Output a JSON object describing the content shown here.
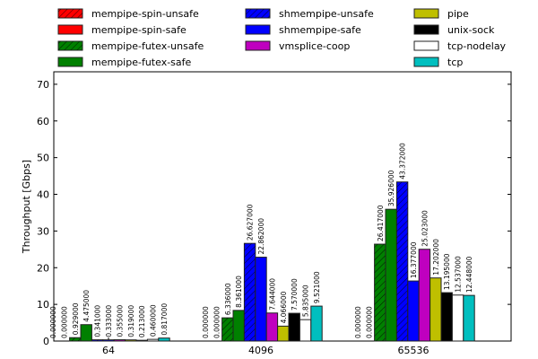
{
  "chart_data": {
    "type": "bar",
    "title": "",
    "xlabel": "",
    "ylabel": "Throughput [Gbps]",
    "ylim": [
      0,
      73.4
    ],
    "yticks": [
      0,
      10,
      20,
      30,
      40,
      50,
      60,
      70
    ],
    "categories": [
      "64",
      "4096",
      "65536"
    ],
    "legend_position": "top",
    "series": [
      {
        "name": "mempipe-spin-unsafe",
        "color": "#ff0000",
        "hatch": true,
        "values": [
          0.0,
          0.0,
          0.0
        ],
        "labels": [
          "0.000000",
          "0.000000",
          "0.000000"
        ]
      },
      {
        "name": "mempipe-spin-safe",
        "color": "#ff0000",
        "hatch": false,
        "values": [
          0.0,
          0.0,
          0.0
        ],
        "labels": [
          "0.000000",
          "0.000000",
          "0.000000"
        ]
      },
      {
        "name": "mempipe-futex-unsafe",
        "color": "#008000",
        "hatch": true,
        "values": [
          0.929,
          6.336,
          26.417
        ],
        "labels": [
          "0.929000",
          "6.336000",
          "26.417000"
        ]
      },
      {
        "name": "mempipe-futex-safe",
        "color": "#008000",
        "hatch": false,
        "values": [
          4.475,
          8.361,
          35.926
        ],
        "labels": [
          "4.475000",
          "8.361000",
          "35.926000"
        ]
      },
      {
        "name": "shmempipe-unsafe",
        "color": "#0000ff",
        "hatch": true,
        "values": [
          0.341,
          26.627,
          43.372
        ],
        "labels": [
          "0.341000",
          "26.627000",
          "43.372000"
        ]
      },
      {
        "name": "shmempipe-safe",
        "color": "#0000ff",
        "hatch": false,
        "values": [
          0.333,
          22.862,
          16.377
        ],
        "labels": [
          "0.333000",
          "22.862000",
          "16.377000"
        ]
      },
      {
        "name": "vmsplice-coop",
        "color": "#bf00bf",
        "hatch": false,
        "values": [
          0.355,
          7.644,
          25.023
        ],
        "labels": [
          "0.355000",
          "7.644000",
          "25.023000"
        ]
      },
      {
        "name": "pipe",
        "color": "#bfbf00",
        "hatch": false,
        "values": [
          0.319,
          4.066,
          17.202
        ],
        "labels": [
          "0.319000",
          "4.066000",
          "17.202000"
        ]
      },
      {
        "name": "unix-sock",
        "color": "#000000",
        "hatch": false,
        "values": [
          0.213,
          7.57,
          13.195
        ],
        "labels": [
          "0.213000",
          "7.570000",
          "13.195000"
        ]
      },
      {
        "name": "tcp-nodelay",
        "color": "#ffffff",
        "hatch": false,
        "values": [
          0.46,
          5.835,
          12.537
        ],
        "labels": [
          "0.460000",
          "5.835000",
          "12.537000"
        ]
      },
      {
        "name": "tcp",
        "color": "#00bfbf",
        "hatch": false,
        "values": [
          0.817,
          9.521,
          12.448
        ],
        "labels": [
          "0.817000",
          "9.521000",
          "12.448000"
        ]
      }
    ]
  }
}
